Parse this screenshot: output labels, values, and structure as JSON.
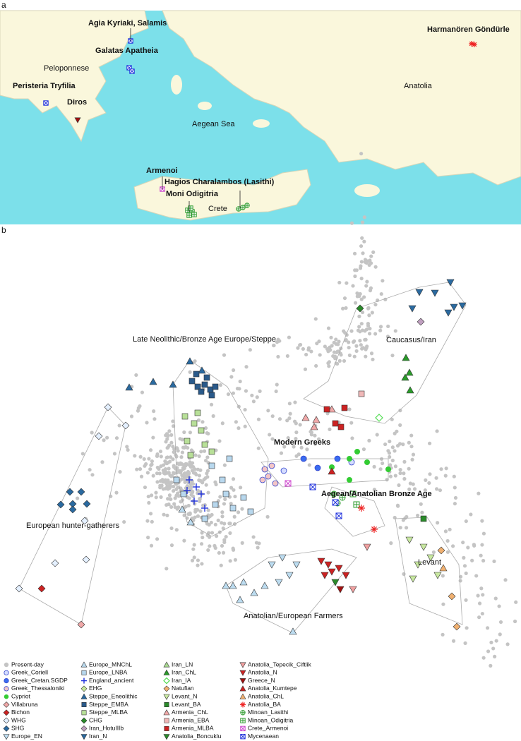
{
  "panel_a": {
    "label": "a",
    "places": [
      {
        "label": "Agia Kyriaki, Salamis",
        "bold": true
      },
      {
        "label": "Galatas Apatheia",
        "bold": true
      },
      {
        "label": "Peloponnese",
        "bold": false
      },
      {
        "label": "Peristeria Tryfilia",
        "bold": true
      },
      {
        "label": "Diros",
        "bold": true
      },
      {
        "label": "Aegean Sea",
        "bold": false
      },
      {
        "label": "Anatolia",
        "bold": false
      },
      {
        "label": "Harmanören Göndürle",
        "bold": true
      },
      {
        "label": "Armenoi",
        "bold": true
      },
      {
        "label": "Hagios Charalambos (Lasithi)",
        "bold": true
      },
      {
        "label": "Moni Odigitria",
        "bold": true
      },
      {
        "label": "Crete",
        "bold": false
      }
    ]
  },
  "panel_b": {
    "label": "b",
    "regions": [
      {
        "label": "Late Neolithic/Bronze Age Europe/Steppe",
        "bold": false
      },
      {
        "label": "Caucasus/Iran",
        "bold": false
      },
      {
        "label": "Modern Greeks",
        "bold": true
      },
      {
        "label": "Aegean/Anatolian Bronze Age",
        "bold": true
      },
      {
        "label": "European hunter-gatherers",
        "bold": false
      },
      {
        "label": "Levant",
        "bold": false
      },
      {
        "label": "Anatolian/European Farmers",
        "bold": false
      }
    ],
    "legend": [
      {
        "label": "Present-day",
        "shape": "circle-plain",
        "color": "#c4c4c4"
      },
      {
        "label": "Greek_Coriell",
        "shape": "circle-outlined",
        "color": "#d4dcff"
      },
      {
        "label": "Greek_Cretan.SGDP",
        "shape": "circle-outlined",
        "color": "#3a6cf0"
      },
      {
        "label": "Greek_Thessaloniki",
        "shape": "circle-outlined",
        "color": "#f4c6c6"
      },
      {
        "label": "Cypriot",
        "shape": "circle-plain",
        "color": "#33cc33"
      },
      {
        "label": "Villabruna",
        "shape": "diamond",
        "color": "#f0a8a8"
      },
      {
        "label": "Bichon",
        "shape": "diamond",
        "color": "#cc2222"
      },
      {
        "label": "WHG",
        "shape": "diamond",
        "color": "#e4f0ff"
      },
      {
        "label": "SHG",
        "shape": "diamond",
        "color": "#2a6aa0"
      },
      {
        "label": "Europe_EN",
        "shape": "tri-down",
        "color": "#bcdcf0"
      },
      {
        "label": "Europe_MNChL",
        "shape": "tri-up",
        "color": "#bcdcf0"
      },
      {
        "label": "Europe_LNBA",
        "shape": "square",
        "color": "#b8d8ee"
      },
      {
        "label": "England_ancient",
        "shape": "plus",
        "color": "#2233dd"
      },
      {
        "label": "EHG",
        "shape": "diamond",
        "color": "#c8e89a"
      },
      {
        "label": "Steppe_Eneolithic",
        "shape": "tri-up",
        "color": "#2a6aa0"
      },
      {
        "label": "Steppe_EMBA",
        "shape": "square",
        "color": "#2a5a8a"
      },
      {
        "label": "Steppe_MLBA",
        "shape": "square",
        "color": "#b8e098"
      },
      {
        "label": "CHG",
        "shape": "diamond",
        "color": "#2a8a2a"
      },
      {
        "label": "Iran_HotuIIIb",
        "shape": "diamond",
        "color": "#c0a0c0"
      },
      {
        "label": "Iran_N",
        "shape": "tri-down",
        "color": "#2a6aa0"
      },
      {
        "label": "Iran_LN",
        "shape": "tri-up",
        "color": "#a8d890"
      },
      {
        "label": "Iran_ChL",
        "shape": "tri-up",
        "color": "#2a9a2a"
      },
      {
        "label": "Iran_IA",
        "shape": "diamond-open",
        "color": "#55dd55"
      },
      {
        "label": "Natufian",
        "shape": "diamond",
        "color": "#f0b070"
      },
      {
        "label": "Levant_N",
        "shape": "tri-down",
        "color": "#c8e8a0"
      },
      {
        "label": "Levant_BA",
        "shape": "square",
        "color": "#2a8a2a"
      },
      {
        "label": "Armenia_ChL",
        "shape": "tri-up",
        "color": "#f0a8a8"
      },
      {
        "label": "Armenia_EBA",
        "shape": "square",
        "color": "#f0b8b8"
      },
      {
        "label": "Armenia_MLBA",
        "shape": "square",
        "color": "#cc2222"
      },
      {
        "label": "Anatolia_Boncuklu",
        "shape": "tri-down",
        "color": "#2a8a2a"
      },
      {
        "label": "Anatolia_Tepecik_Ciftlik",
        "shape": "tri-down",
        "color": "#f0a0a0"
      },
      {
        "label": "Anatolia_N",
        "shape": "tri-down",
        "color": "#cc2222"
      },
      {
        "label": "Greece_N",
        "shape": "tri-down",
        "color": "#a01010"
      },
      {
        "label": "Anatolia_Kumtepe",
        "shape": "tri-up",
        "color": "#cc2222"
      },
      {
        "label": "Anatolia_ChL",
        "shape": "tri-up",
        "color": "#f0b070"
      },
      {
        "label": "Anatolia_BA",
        "shape": "star",
        "color": "#ee2222"
      },
      {
        "label": "Minoan_Lasithi",
        "shape": "circle-plus",
        "color": "#2a9a2a"
      },
      {
        "label": "Minoan_Odigitria",
        "shape": "square-grid",
        "color": "#2a9a2a"
      },
      {
        "label": "Crete_Armenoi",
        "shape": "square-x",
        "color": "#cc44cc"
      },
      {
        "label": "Mycenaean",
        "shape": "square-x",
        "color": "#2233dd"
      }
    ]
  }
}
